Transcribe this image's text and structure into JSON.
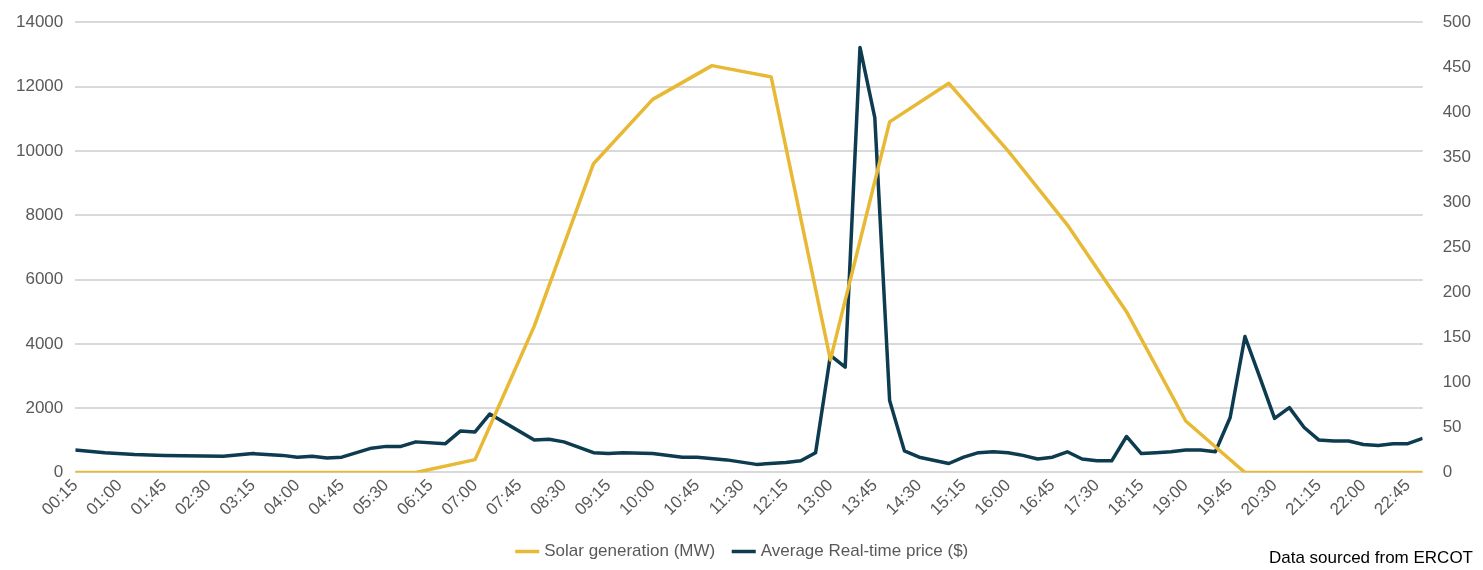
{
  "chart_data": {
    "type": "line",
    "xlim": [
      0.25,
      23
    ],
    "ylim": [
      0,
      14000
    ],
    "yticks": [
      0,
      2000,
      4000,
      6000,
      8000,
      10000,
      12000,
      14000
    ],
    "y2lim": [
      0,
      500
    ],
    "y2ticks": [
      0,
      50,
      100,
      150,
      200,
      250,
      300,
      350,
      400,
      450,
      500
    ],
    "xticks": [
      {
        "value": 0.25,
        "label": "00:15"
      },
      {
        "value": 1,
        "label": "01:00"
      },
      {
        "value": 1.75,
        "label": "01:45"
      },
      {
        "value": 2.5,
        "label": "02:30"
      },
      {
        "value": 3.25,
        "label": "03:15"
      },
      {
        "value": 4,
        "label": "04:00"
      },
      {
        "value": 4.75,
        "label": "04:45"
      },
      {
        "value": 5.5,
        "label": "05:30"
      },
      {
        "value": 6.25,
        "label": "06:15"
      },
      {
        "value": 7,
        "label": "07:00"
      },
      {
        "value": 7.75,
        "label": "07:45"
      },
      {
        "value": 8.5,
        "label": "08:30"
      },
      {
        "value": 9.25,
        "label": "09:15"
      },
      {
        "value": 10,
        "label": "10:00"
      },
      {
        "value": 10.75,
        "label": "10:45"
      },
      {
        "value": 11.5,
        "label": "11:30"
      },
      {
        "value": 12.25,
        "label": "12:15"
      },
      {
        "value": 13,
        "label": "13:00"
      },
      {
        "value": 13.75,
        "label": "13:45"
      },
      {
        "value": 14.5,
        "label": "14:30"
      },
      {
        "value": 15.25,
        "label": "15:15"
      },
      {
        "value": 16,
        "label": "16:00"
      },
      {
        "value": 16.75,
        "label": "16:45"
      },
      {
        "value": 17.5,
        "label": "17:30"
      },
      {
        "value": 18.25,
        "label": "18:15"
      },
      {
        "value": 19,
        "label": "19:00"
      },
      {
        "value": 19.75,
        "label": "19:45"
      },
      {
        "value": 20.5,
        "label": "20:30"
      },
      {
        "value": 21.25,
        "label": "21:15"
      },
      {
        "value": 22,
        "label": "22:00"
      },
      {
        "value": 22.75,
        "label": "22:45"
      }
    ],
    "series": [
      {
        "name": "Solar generation (MW)",
        "color": "#e8b935",
        "x": [
          0.25,
          1,
          2,
          3,
          4,
          5,
          6,
          7,
          8,
          9,
          10,
          11,
          12,
          13,
          14,
          15,
          16,
          17,
          18,
          19,
          20,
          21,
          22,
          23
        ],
        "values": [
          0,
          0,
          0,
          0,
          0,
          0,
          0,
          400,
          4550,
          9600,
          11600,
          12650,
          12300,
          3500,
          10900,
          12100,
          10000,
          7700,
          5000,
          1600,
          0,
          0,
          0,
          0
        ]
      },
      {
        "name": "Average Real-time price ($)",
        "color": "#0d3b4f",
        "axis": "y2",
        "x": [
          0.25,
          0.75,
          1.25,
          1.75,
          2.75,
          3.25,
          3.75,
          4,
          4.25,
          4.5,
          4.75,
          5.25,
          5.5,
          5.75,
          6,
          6.5,
          6.75,
          7,
          7.25,
          8,
          8.25,
          8.5,
          9,
          9.25,
          9.5,
          10,
          10.5,
          10.75,
          11.25,
          11.75,
          12.25,
          12.5,
          12.75,
          13,
          13.25,
          13.5,
          13.75,
          14,
          14.25,
          14.5,
          15,
          15.25,
          15.5,
          15.75,
          16,
          16.25,
          16.5,
          16.75,
          17,
          17.25,
          17.5,
          17.75,
          18,
          18.25,
          18.5,
          18.75,
          19,
          19.25,
          19.5,
          19.75,
          20,
          20.25,
          20.5,
          20.75,
          21,
          21.25,
          21.5,
          21.75,
          22,
          22.25,
          22.5,
          22.75,
          23
        ],
        "values": [
          25,
          22,
          20,
          19,
          18,
          21,
          19,
          17,
          18,
          16,
          17,
          27,
          29,
          29,
          34,
          32,
          46,
          45,
          65,
          36,
          37,
          34,
          22,
          21,
          22,
          21,
          17,
          17,
          14,
          9,
          11,
          13,
          22,
          130,
          117,
          472,
          394,
          80,
          24,
          17,
          10,
          17,
          22,
          23,
          22,
          19,
          15,
          17,
          23,
          15,
          13,
          13,
          40,
          21,
          22,
          23,
          25,
          25,
          23,
          61,
          151,
          106,
          60,
          72,
          50,
          36,
          35,
          35,
          31,
          30,
          32,
          32,
          38
        ]
      }
    ],
    "grid": "y",
    "legend": "bottom",
    "marker": "none",
    "line_style": "solid",
    "annotations": [
      "Data sourced from ERCOT"
    ]
  }
}
